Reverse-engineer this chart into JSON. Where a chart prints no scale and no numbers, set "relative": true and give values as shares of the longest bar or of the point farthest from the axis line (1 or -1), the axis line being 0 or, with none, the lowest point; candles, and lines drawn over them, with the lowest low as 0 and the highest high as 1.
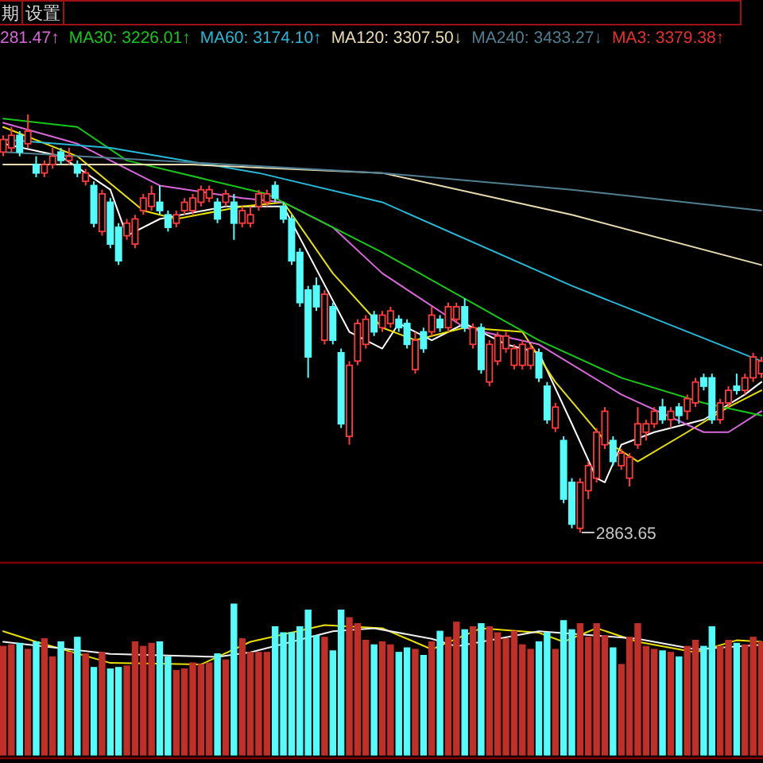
{
  "chart_data": [
    {
      "type": "candlestick",
      "relative": true,
      "categories": [
        null,
        null,
        null,
        null,
        null,
        null,
        null,
        null,
        null,
        null,
        null,
        null,
        null,
        null,
        null,
        null,
        null,
        null,
        null,
        null,
        null,
        null,
        null,
        null,
        null,
        null,
        null,
        null,
        null,
        null,
        null,
        null,
        null,
        null,
        null,
        null,
        null,
        null,
        null,
        null,
        null,
        null,
        null,
        null,
        null,
        null,
        null,
        null,
        null,
        null,
        null,
        null,
        null,
        null,
        null,
        null,
        null,
        null,
        null,
        null,
        null,
        null,
        null,
        null,
        null,
        null,
        null,
        null,
        null,
        null,
        null,
        null,
        null,
        null,
        null,
        null,
        null,
        null,
        null,
        null,
        null,
        null,
        null,
        null,
        null,
        null,
        null,
        null,
        null,
        null,
        null,
        null,
        null
      ],
      "ohlc": [
        [
          0.91,
          0.95,
          0.9,
          0.94
        ],
        [
          0.92,
          0.97,
          0.91,
          0.95
        ],
        [
          0.95,
          0.96,
          0.9,
          0.91
        ],
        [
          0.93,
          1,
          0.92,
          0.96
        ],
        [
          0.88,
          0.9,
          0.85,
          0.86
        ],
        [
          0.86,
          0.89,
          0.85,
          0.88
        ],
        [
          0.88,
          0.92,
          0.87,
          0.9
        ],
        [
          0.91,
          0.92,
          0.88,
          0.89
        ],
        [
          0.89,
          0.92,
          0.88,
          0.9
        ],
        [
          0.88,
          0.89,
          0.85,
          0.86
        ],
        [
          0.84,
          0.87,
          0.83,
          0.86
        ],
        [
          0.83,
          0.84,
          0.73,
          0.74
        ],
        [
          0.72,
          0.82,
          0.71,
          0.81
        ],
        [
          0.79,
          0.8,
          0.68,
          0.69
        ],
        [
          0.73,
          0.74,
          0.64,
          0.65
        ],
        [
          0.71,
          0.75,
          0.7,
          0.74
        ],
        [
          0.69,
          0.76,
          0.68,
          0.75
        ],
        [
          0.77,
          0.81,
          0.76,
          0.8
        ],
        [
          0.78,
          0.83,
          0.77,
          0.81
        ],
        [
          0.79,
          0.83,
          0.76,
          0.77
        ],
        [
          0.76,
          0.77,
          0.72,
          0.73
        ],
        [
          0.74,
          0.77,
          0.73,
          0.76
        ],
        [
          0.77,
          0.8,
          0.76,
          0.79
        ],
        [
          0.77,
          0.81,
          0.76,
          0.8
        ],
        [
          0.79,
          0.83,
          0.78,
          0.82
        ],
        [
          0.8,
          0.83,
          0.79,
          0.82
        ],
        [
          0.79,
          0.8,
          0.74,
          0.75
        ],
        [
          0.79,
          0.82,
          0.78,
          0.81
        ],
        [
          0.79,
          0.81,
          0.7,
          0.74
        ],
        [
          0.74,
          0.78,
          0.73,
          0.77
        ],
        [
          0.74,
          0.78,
          0.73,
          0.76
        ],
        [
          0.78,
          0.82,
          0.77,
          0.81
        ],
        [
          0.79,
          0.82,
          0.78,
          0.81
        ],
        [
          0.83,
          0.84,
          0.79,
          0.8
        ],
        [
          0.78,
          0.79,
          0.74,
          0.75
        ],
        [
          0.75,
          0.76,
          0.64,
          0.65
        ],
        [
          0.67,
          0.68,
          0.54,
          0.55
        ],
        [
          0.58,
          0.59,
          0.37,
          0.42
        ],
        [
          0.59,
          0.61,
          0.53,
          0.54
        ],
        [
          0.46,
          0.58,
          0.45,
          0.57
        ],
        [
          0.54,
          0.55,
          0.45,
          0.46
        ],
        [
          0.43,
          0.44,
          0.25,
          0.26
        ],
        [
          0.23,
          0.41,
          0.21,
          0.4
        ],
        [
          0.41,
          0.51,
          0.4,
          0.5
        ],
        [
          0.45,
          0.52,
          0.44,
          0.51
        ],
        [
          0.52,
          0.53,
          0.47,
          0.48
        ],
        [
          0.49,
          0.53,
          0.48,
          0.52
        ],
        [
          0.5,
          0.54,
          0.49,
          0.53
        ],
        [
          0.51,
          0.52,
          0.48,
          0.49
        ],
        [
          0.5,
          0.51,
          0.44,
          0.45
        ],
        [
          0.39,
          0.48,
          0.38,
          0.46
        ],
        [
          0.48,
          0.49,
          0.43,
          0.44
        ],
        [
          0.48,
          0.54,
          0.47,
          0.52
        ],
        [
          0.51,
          0.52,
          0.48,
          0.49
        ],
        [
          0.49,
          0.55,
          0.48,
          0.54
        ],
        [
          0.51,
          0.55,
          0.5,
          0.54
        ],
        [
          0.54,
          0.56,
          0.48,
          0.49
        ],
        [
          0.45,
          0.5,
          0.44,
          0.49
        ],
        [
          0.49,
          0.5,
          0.38,
          0.39
        ],
        [
          0.36,
          0.46,
          0.35,
          0.45
        ],
        [
          0.41,
          0.48,
          0.4,
          0.47
        ],
        [
          0.44,
          0.48,
          0.43,
          0.47
        ],
        [
          0.4,
          0.45,
          0.39,
          0.44
        ],
        [
          0.4,
          0.46,
          0.39,
          0.45
        ],
        [
          0.4,
          0.45,
          0.39,
          0.44
        ],
        [
          0.43,
          0.44,
          0.36,
          0.37
        ],
        [
          0.35,
          0.36,
          0.26,
          0.27
        ],
        [
          0.25,
          0.31,
          0.24,
          0.3
        ],
        [
          0.22,
          0.23,
          0.07,
          0.08
        ],
        [
          0.12,
          0.13,
          0.01,
          0.02
        ],
        [
          0.01,
          0.13,
          0,
          0.12
        ],
        [
          0.1,
          0.17,
          0.08,
          0.16
        ],
        [
          0.13,
          0.25,
          0.12,
          0.24
        ],
        [
          0.21,
          0.3,
          0.2,
          0.29
        ],
        [
          0.22,
          0.23,
          0.16,
          0.17
        ],
        [
          0.16,
          0.2,
          0.15,
          0.19
        ],
        [
          0.13,
          0.19,
          0.11,
          0.18
        ],
        [
          0.21,
          0.3,
          0.2,
          0.26
        ],
        [
          0.24,
          0.27,
          0.22,
          0.26
        ],
        [
          0.26,
          0.3,
          0.25,
          0.29
        ],
        [
          0.3,
          0.32,
          0.26,
          0.27
        ],
        [
          0.27,
          0.3,
          0.25,
          0.29
        ],
        [
          0.3,
          0.31,
          0.26,
          0.28
        ],
        [
          0.29,
          0.33,
          0.27,
          0.32
        ],
        [
          0.31,
          0.37,
          0.3,
          0.36
        ],
        [
          0.37,
          0.38,
          0.34,
          0.35
        ],
        [
          0.37,
          0.38,
          0.26,
          0.27
        ],
        [
          0.27,
          0.32,
          0.26,
          0.31
        ],
        [
          0.31,
          0.35,
          0.3,
          0.34
        ],
        [
          0.35,
          0.38,
          0.33,
          0.34
        ],
        [
          0.34,
          0.38,
          0.33,
          0.37
        ],
        [
          0.37,
          0.43,
          0.36,
          0.42
        ],
        [
          0.38,
          0.42,
          0.37,
          0.41
        ]
      ],
      "series": [
        {
          "type": "line",
          "color": "#ffffff",
          "values": [
            0.93,
            null,
            null,
            null,
            null,
            null,
            null,
            0.9,
            null,
            null,
            null,
            null,
            null,
            0.82,
            null,
            0.71,
            null,
            null,
            null,
            0.75,
            null,
            null,
            null,
            null,
            null,
            null,
            null,
            0.78,
            null,
            null,
            null,
            null,
            null,
            null,
            0.78,
            null,
            null,
            null,
            0.63,
            null,
            null,
            null,
            0.48,
            null,
            null,
            null,
            0.44,
            null,
            0.5,
            null,
            null,
            null,
            0.46,
            null,
            null,
            null,
            0.5,
            null,
            null,
            null,
            null,
            0.45,
            null,
            null,
            null,
            0.43,
            null,
            null,
            null,
            0.26,
            null,
            null,
            0.13,
            0.12,
            null,
            0.21,
            null,
            null,
            null,
            0.24,
            null,
            null,
            null,
            null,
            null,
            0.27,
            null,
            null,
            null,
            null,
            0.33,
            null,
            0.36
          ]
        },
        {
          "type": "line",
          "color": "#e8e000",
          "values": [
            0.97,
            null,
            null,
            null,
            null,
            null,
            null,
            null,
            null,
            0.9,
            null,
            null,
            null,
            null,
            null,
            null,
            null,
            0.77,
            null,
            null,
            null,
            0.75,
            null,
            null,
            null,
            null,
            null,
            null,
            null,
            0.78,
            null,
            null,
            null,
            null,
            0.79,
            null,
            null,
            null,
            null,
            null,
            0.62,
            null,
            null,
            null,
            null,
            null,
            0.49,
            null,
            null,
            null,
            0.46,
            null,
            null,
            null,
            null,
            null,
            0.49,
            null,
            null,
            null,
            null,
            null,
            null,
            0.48,
            null,
            null,
            null,
            0.36,
            null,
            null,
            null,
            null,
            null,
            0.22,
            null,
            null,
            null,
            0.17,
            null,
            null,
            null,
            null,
            null,
            0.24,
            null,
            null,
            null,
            null,
            0.3,
            null,
            null,
            null,
            0.34
          ]
        },
        {
          "type": "line",
          "name": "281.47↑",
          "color": "#d868d8",
          "values": [
            0.98,
            null,
            null,
            null,
            null,
            null,
            null,
            null,
            null,
            0.93,
            null,
            null,
            null,
            null,
            null,
            null,
            null,
            null,
            null,
            0.83,
            null,
            null,
            null,
            null,
            null,
            null,
            null,
            null,
            null,
            0.8,
            null,
            null,
            null,
            null,
            0.79,
            null,
            null,
            null,
            null,
            null,
            0.73,
            null,
            null,
            null,
            null,
            null,
            0.62,
            null,
            null,
            null,
            null,
            null,
            null,
            null,
            null,
            null,
            0.49,
            null,
            null,
            null,
            null,
            null,
            null,
            null,
            null,
            0.45,
            null,
            null,
            null,
            null,
            null,
            null,
            null,
            null,
            null,
            0.33,
            null,
            null,
            null,
            null,
            null,
            null,
            null,
            null,
            null,
            0.24,
            null,
            null,
            0.24,
            null,
            null,
            null,
            0.29
          ]
        },
        {
          "type": "line",
          "name": "MA30: 3226.01↑",
          "color": "#18c818",
          "values": [
            0.99,
            null,
            null,
            null,
            null,
            null,
            null,
            null,
            null,
            0.97,
            null,
            null,
            null,
            null,
            null,
            0.89,
            null,
            null,
            null,
            null,
            null,
            null,
            null,
            null,
            null,
            null,
            null,
            null,
            null,
            null,
            null,
            null,
            0.81,
            null,
            null,
            null,
            null,
            null,
            null,
            null,
            null,
            null,
            null,
            null,
            null,
            null,
            0.67,
            null,
            null,
            null,
            null,
            null,
            null,
            null,
            null,
            null,
            null,
            null,
            null,
            null,
            null,
            null,
            null,
            null,
            null,
            0.46,
            null,
            null,
            null,
            null,
            null,
            null,
            null,
            null,
            null,
            0.37,
            null,
            null,
            null,
            null,
            null,
            null,
            null,
            null,
            null,
            0.31,
            null,
            null,
            null,
            null,
            null,
            null,
            0.28
          ]
        },
        {
          "type": "line",
          "name": "MA60: 3174.10↑",
          "color": "#28b8d8",
          "values": [
            0.94,
            null,
            null,
            null,
            null,
            null,
            null,
            null,
            null,
            null,
            null,
            null,
            null,
            0.92,
            null,
            null,
            null,
            null,
            null,
            null,
            null,
            null,
            null,
            null,
            null,
            null,
            null,
            null,
            null,
            null,
            null,
            0.86,
            null,
            null,
            null,
            null,
            null,
            null,
            null,
            null,
            null,
            null,
            null,
            null,
            null,
            null,
            0.79,
            null,
            null,
            null,
            null,
            null,
            null,
            null,
            null,
            null,
            null,
            null,
            null,
            null,
            null,
            null,
            null,
            null,
            null,
            null,
            null,
            null,
            null,
            0.59,
            null,
            null,
            null,
            null,
            null,
            null,
            null,
            null,
            null,
            null,
            null,
            null,
            null,
            null,
            null,
            null,
            null,
            null,
            null,
            null,
            null,
            null,
            0.41
          ]
        },
        {
          "type": "line",
          "name": "MA120: 3307.50↓",
          "color": "#e8dcb0",
          "values": [
            0.88,
            null,
            null,
            null,
            null,
            null,
            null,
            null,
            null,
            null,
            null,
            null,
            null,
            null,
            null,
            null,
            null,
            null,
            null,
            null,
            null,
            null,
            null,
            0.88,
            null,
            null,
            null,
            null,
            null,
            null,
            null,
            null,
            null,
            null,
            null,
            null,
            null,
            null,
            null,
            null,
            null,
            null,
            null,
            null,
            null,
            null,
            0.86,
            null,
            null,
            null,
            null,
            null,
            null,
            null,
            null,
            null,
            null,
            null,
            null,
            null,
            null,
            null,
            null,
            null,
            null,
            null,
            null,
            null,
            null,
            0.76,
            null,
            null,
            null,
            null,
            null,
            null,
            null,
            null,
            null,
            null,
            null,
            null,
            null,
            null,
            null,
            null,
            null,
            null,
            null,
            null,
            null,
            null,
            0.64
          ]
        },
        {
          "type": "line",
          "name": "MA240: 3433.27↓",
          "color": "#4f7f90",
          "values": [
            0.91,
            null,
            null,
            null,
            null,
            null,
            null,
            null,
            null,
            null,
            null,
            null,
            null,
            null,
            null,
            null,
            null,
            null,
            null,
            null,
            null,
            null,
            null,
            null,
            null,
            null,
            null,
            null,
            null,
            null,
            null,
            null,
            null,
            null,
            null,
            null,
            null,
            null,
            null,
            null,
            null,
            null,
            null,
            null,
            null,
            null,
            0.86,
            null,
            null,
            null,
            null,
            null,
            null,
            null,
            null,
            null,
            null,
            null,
            null,
            null,
            null,
            null,
            null,
            null,
            null,
            null,
            null,
            null,
            null,
            0.82,
            null,
            null,
            null,
            null,
            null,
            null,
            null,
            null,
            null,
            null,
            null,
            null,
            null,
            null,
            null,
            null,
            null,
            null,
            null,
            null,
            null,
            null,
            0.77
          ]
        }
      ],
      "annotations": [
        "2863.65",
        "期",
        "设置",
        "MA3: 3379.38↑"
      ]
    },
    {
      "type": "bar",
      "relative": true,
      "categories": [
        null,
        null,
        null,
        null,
        null,
        null,
        null,
        null,
        null,
        null,
        null,
        null,
        null,
        null,
        null,
        null,
        null,
        null,
        null,
        null,
        null,
        null,
        null,
        null,
        null,
        null,
        null,
        null,
        null,
        null,
        null,
        null,
        null,
        null,
        null,
        null,
        null,
        null,
        null,
        null,
        null,
        null,
        null,
        null,
        null,
        null,
        null,
        null,
        null,
        null,
        null,
        null,
        null,
        null,
        null,
        null,
        null,
        null,
        null,
        null,
        null,
        null,
        null,
        null,
        null,
        null,
        null,
        null,
        null,
        null,
        null,
        null,
        null,
        null,
        null,
        null,
        null,
        null,
        null,
        null,
        null,
        null,
        null,
        null,
        null,
        null,
        null,
        null,
        null,
        null,
        null,
        null,
        null
      ],
      "series": [
        {
          "type": "bar",
          "values": [
            0.72,
            0.73,
            0.74,
            0.7,
            0.75,
            0.77,
            0.65,
            0.75,
            0.68,
            0.78,
            0.67,
            0.58,
            0.68,
            0.57,
            0.58,
            0.59,
            0.75,
            0.72,
            0.74,
            0.75,
            0.65,
            0.56,
            0.57,
            0.61,
            0.6,
            0.61,
            0.67,
            0.63,
            1.0,
            0.77,
            0.68,
            0.68,
            0.68,
            0.85,
            0.81,
            0.81,
            0.85,
            0.96,
            0.79,
            0.78,
            0.69,
            0.96,
            0.91,
            0.87,
            0.76,
            0.73,
            0.75,
            0.73,
            0.68,
            0.71,
            0.7,
            0.66,
            0.75,
            0.82,
            0.78,
            0.88,
            0.83,
            0.85,
            0.87,
            0.85,
            0.81,
            0.77,
            0.82,
            0.73,
            0.7,
            0.75,
            0.81,
            0.7,
            0.89,
            0.83,
            0.87,
            0.78,
            0.87,
            0.79,
            0.71,
            0.6,
            0.78,
            0.87,
            0.72,
            0.7,
            0.69,
            0.68,
            0.65,
            0.72,
            0.76,
            0.72,
            0.85,
            0.72,
            0.76,
            0.74,
            0.73,
            0.78,
            0.75
          ],
          "colors": [
            "#c03028",
            "#c03028",
            "#54fcfc",
            "#c03028",
            "#54fcfc",
            "#c03028",
            "#c03028",
            "#54fcfc",
            "#c03028",
            "#54fcfc",
            "#c03028",
            "#54fcfc",
            "#c03028",
            "#54fcfc",
            "#54fcfc",
            "#c03028",
            "#c03028",
            "#c03028",
            "#c03028",
            "#54fcfc",
            "#54fcfc",
            "#c03028",
            "#c03028",
            "#c03028",
            "#c03028",
            "#c03028",
            "#54fcfc",
            "#c03028",
            "#54fcfc",
            "#c03028",
            "#c03028",
            "#c03028",
            "#c03028",
            "#54fcfc",
            "#54fcfc",
            "#54fcfc",
            "#54fcfc",
            "#54fcfc",
            "#54fcfc",
            "#c03028",
            "#54fcfc",
            "#54fcfc",
            "#c03028",
            "#c03028",
            "#c03028",
            "#54fcfc",
            "#c03028",
            "#c03028",
            "#54fcfc",
            "#54fcfc",
            "#c03028",
            "#54fcfc",
            "#c03028",
            "#54fcfc",
            "#c03028",
            "#c03028",
            "#54fcfc",
            "#c03028",
            "#54fcfc",
            "#c03028",
            "#c03028",
            "#c03028",
            "#c03028",
            "#c03028",
            "#c03028",
            "#54fcfc",
            "#54fcfc",
            "#c03028",
            "#54fcfc",
            "#54fcfc",
            "#c03028",
            "#c03028",
            "#c03028",
            "#c03028",
            "#54fcfc",
            "#c03028",
            "#c03028",
            "#c03028",
            "#c03028",
            "#c03028",
            "#54fcfc",
            "#c03028",
            "#54fcfc",
            "#c03028",
            "#c03028",
            "#54fcfc",
            "#54fcfc",
            "#c03028",
            "#c03028",
            "#54fcfc",
            "#c03028",
            "#c03028",
            "#c03028"
          ]
        },
        {
          "type": "line",
          "color": "#e8e000",
          "values": [
            0.82,
            null,
            null,
            null,
            0.75,
            null,
            null,
            null,
            null,
            null,
            null,
            null,
            null,
            0.61,
            null,
            null,
            null,
            null,
            null,
            null,
            null,
            null,
            null,
            null,
            0.6,
            null,
            null,
            null,
            null,
            null,
            0.75,
            null,
            null,
            null,
            null,
            null,
            null,
            null,
            null,
            0.86,
            null,
            null,
            null,
            null,
            null,
            null,
            0.84,
            null,
            null,
            null,
            null,
            null,
            0.7,
            null,
            null,
            null,
            null,
            null,
            0.84,
            null,
            null,
            null,
            null,
            null,
            null,
            0.81,
            null,
            null,
            0.75,
            null,
            null,
            null,
            0.84,
            null,
            null,
            null,
            null,
            0.75,
            null,
            null,
            null,
            null,
            null,
            null,
            0.68,
            null,
            null,
            null,
            null,
            0.76,
            null,
            null,
            0.75
          ]
        },
        {
          "type": "line",
          "color": "#f0f0f0",
          "values": [
            0.75,
            null,
            null,
            null,
            null,
            null,
            null,
            null,
            null,
            null,
            null,
            null,
            null,
            0.67,
            null,
            null,
            null,
            null,
            null,
            null,
            null,
            null,
            null,
            null,
            null,
            null,
            0.65,
            null,
            null,
            null,
            0.68,
            null,
            null,
            null,
            null,
            null,
            null,
            null,
            null,
            null,
            0.82,
            null,
            null,
            null,
            null,
            0.84,
            null,
            null,
            null,
            null,
            null,
            null,
            0.77,
            null,
            null,
            0.72,
            null,
            null,
            null,
            null,
            null,
            null,
            null,
            null,
            null,
            0.82,
            null,
            null,
            null,
            null,
            null,
            null,
            null,
            null,
            null,
            null,
            null,
            0.77,
            null,
            null,
            null,
            null,
            null,
            null,
            0.7,
            null,
            null,
            null,
            null,
            null,
            null,
            null,
            0.73
          ]
        }
      ]
    }
  ]
}
